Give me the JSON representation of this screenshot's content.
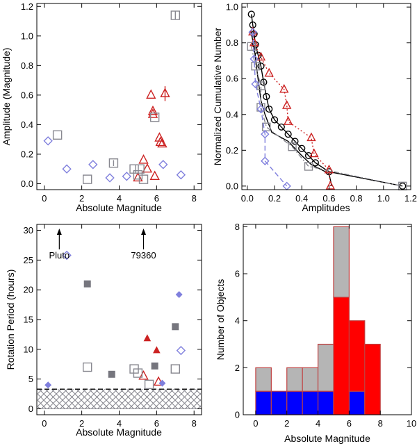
{
  "colors": {
    "red": "#cc2222",
    "gray": "#888890",
    "blue": "#7f7fdd",
    "dark_gray": "#76767e",
    "black": "#000000",
    "hist_gray": "#b5b5b5",
    "hist_red": "#ff0000",
    "hist_blue": "#0000ff",
    "hist_edge": "#c04040",
    "hatch": "#888890"
  },
  "chart_data": [
    {
      "id": "amp_vs_mag",
      "type": "scatter",
      "xlabel": "Absolute Magnitude",
      "ylabel": "Amplitude (Magnitude)",
      "xlim": [
        -0.4,
        8.4
      ],
      "ylim": [
        -0.04,
        1.22
      ],
      "xticks": [
        0,
        2,
        4,
        6,
        8
      ],
      "yticks": [
        0.0,
        0.2,
        0.4,
        0.6,
        0.8,
        1.0,
        1.2
      ],
      "ytick_labels": [
        "0.0",
        "0.2",
        "0.4",
        "0.6",
        "0.8",
        "1.0",
        "1.2"
      ],
      "series": [
        {
          "name": "triangles",
          "marker": "triangle",
          "color_key": "red",
          "x": [
            5.0,
            5.3,
            5.5,
            5.7,
            5.8,
            5.8,
            5.9,
            6.15,
            6.2,
            6.3,
            6.45
          ],
          "y": [
            0.04,
            0.16,
            0.1,
            0.6,
            0.49,
            0.47,
            0.05,
            0.31,
            0.28,
            0.27,
            0.61
          ],
          "err": [
            0,
            0,
            0,
            0,
            0,
            0,
            0,
            0,
            0,
            0,
            0.05
          ]
        },
        {
          "name": "squares",
          "marker": "square",
          "color_key": "gray",
          "x": [
            0.7,
            2.3,
            3.7,
            4.8,
            5.0,
            5.1,
            5.3,
            5.9,
            7.0
          ],
          "y": [
            0.33,
            0.03,
            0.14,
            0.1,
            0.06,
            0.1,
            0.03,
            0.45,
            1.14
          ],
          "err": [
            0,
            0,
            0.02,
            0,
            0,
            0,
            0,
            0,
            0.03
          ]
        },
        {
          "name": "diamonds",
          "marker": "diamond",
          "color_key": "blue",
          "x": [
            0.2,
            1.2,
            2.6,
            3.5,
            4.4,
            6.35,
            7.3
          ],
          "y": [
            0.29,
            0.1,
            0.13,
            0.04,
            0.05,
            0.13,
            0.06
          ],
          "err": [
            0,
            0,
            0,
            0,
            0,
            0,
            0
          ]
        }
      ]
    },
    {
      "id": "cumulative",
      "type": "line",
      "xlabel": "Amplitudes",
      "ylabel": "Normalized Cumulative Number",
      "xlim": [
        -0.04,
        1.2
      ],
      "ylim": [
        -0.02,
        1.02
      ],
      "xticks": [
        0.0,
        0.2,
        0.4,
        0.6,
        0.8,
        1.0,
        1.2
      ],
      "xtick_labels": [
        "0.0",
        "0.2",
        "0.4",
        "0.6",
        "0.8",
        "1.0",
        "1.2"
      ],
      "yticks": [
        0.0,
        0.2,
        0.4,
        0.6,
        0.8,
        1.0
      ],
      "ytick_labels": [
        "0.0",
        "0.2",
        "0.4",
        "0.6",
        "0.8",
        "1.0"
      ],
      "series": [
        {
          "name": "all_circles",
          "marker": "circle",
          "color_key": "black",
          "dash": "solid",
          "x": [
            0.03,
            0.04,
            0.05,
            0.06,
            0.08,
            0.1,
            0.12,
            0.14,
            0.16,
            0.2,
            0.25,
            0.3,
            0.35,
            0.4,
            0.45,
            0.5,
            0.6,
            1.14
          ],
          "y": [
            0.96,
            0.9,
            0.85,
            0.79,
            0.73,
            0.67,
            0.58,
            0.5,
            0.43,
            0.37,
            0.33,
            0.29,
            0.25,
            0.21,
            0.17,
            0.13,
            0.08,
            0.0
          ]
        },
        {
          "name": "black_step",
          "marker": "none",
          "color_key": "black",
          "dash": "solid",
          "x": [
            0.03,
            0.05,
            0.07,
            0.1,
            0.13,
            0.18,
            0.3,
            0.4,
            0.47,
            0.6,
            0.62
          ],
          "y": [
            0.85,
            0.78,
            0.65,
            0.48,
            0.4,
            0.3,
            0.25,
            0.17,
            0.12,
            0.07,
            0.0
          ]
        },
        {
          "name": "red_triangles",
          "marker": "triangle",
          "color_key": "red",
          "dash": "dotted",
          "x": [
            0.04,
            0.05,
            0.1,
            0.16,
            0.27,
            0.29,
            0.3,
            0.47,
            0.49,
            0.6,
            0.61
          ],
          "y": [
            0.86,
            0.8,
            0.72,
            0.63,
            0.54,
            0.45,
            0.36,
            0.27,
            0.18,
            0.09,
            0.0
          ]
        },
        {
          "name": "gray_squares",
          "marker": "square",
          "color_key": "gray",
          "dash": "dashdot",
          "x": [
            0.03,
            0.06,
            0.1,
            0.1,
            0.14,
            0.33,
            0.45,
            1.14
          ],
          "y": [
            0.78,
            0.67,
            0.56,
            0.44,
            0.33,
            0.22,
            0.11,
            0.0
          ]
        },
        {
          "name": "blue_diamonds",
          "marker": "diamond",
          "color_key": "blue",
          "dash": "dashed",
          "x": [
            0.04,
            0.05,
            0.06,
            0.1,
            0.13,
            0.13,
            0.29
          ],
          "y": [
            0.86,
            0.71,
            0.57,
            0.43,
            0.29,
            0.14,
            0.0
          ]
        }
      ]
    },
    {
      "id": "period_vs_mag",
      "type": "scatter",
      "xlabel": "Absolute Magnitude",
      "ylabel": "Rotation Period (hours)",
      "xlim": [
        -0.4,
        8.4
      ],
      "ylim": [
        -1.0,
        31.0
      ],
      "xticks": [
        0,
        2,
        4,
        6,
        8
      ],
      "yticks": [
        0,
        5,
        10,
        15,
        20,
        25,
        30
      ],
      "hatch_region": {
        "y_min": 0,
        "y_max": 3.3
      },
      "annotations": [
        {
          "text": "Pluto",
          "x": 0.8,
          "y_arrow_tip": 30.3,
          "y_arrow_base": 26.8,
          "y_text": 25.3
        },
        {
          "text": "79360",
          "x": 5.3,
          "y_arrow_tip": 30.3,
          "y_arrow_base": 26.8,
          "y_text": 25.3
        }
      ],
      "series": [
        {
          "name": "open_triangles",
          "marker": "triangle",
          "filled": false,
          "color_key": "red",
          "x": [
            5.3,
            6.1
          ],
          "y": [
            5.5,
            4.5
          ]
        },
        {
          "name": "filled_triangles",
          "marker": "triangle",
          "filled": true,
          "color_key": "red",
          "x": [
            5.5,
            6.0
          ],
          "y": [
            11.8,
            9.8
          ]
        },
        {
          "name": "open_squares",
          "marker": "square",
          "filled": false,
          "color_key": "gray",
          "x": [
            2.3,
            4.8,
            5.0,
            5.6,
            7.0
          ],
          "y": [
            7.0,
            6.7,
            6.0,
            4.1,
            6.7
          ]
        },
        {
          "name": "filled_squares",
          "marker": "square",
          "filled": true,
          "color_key": "dark_gray",
          "x": [
            2.3,
            3.6,
            5.9,
            7.0
          ],
          "y": [
            21.0,
            5.8,
            7.2,
            13.8
          ]
        },
        {
          "name": "open_diamonds",
          "marker": "diamond",
          "filled": false,
          "color_key": "blue",
          "x": [
            1.2,
            7.3
          ],
          "y": [
            25.8,
            9.8
          ]
        },
        {
          "name": "filled_diamonds",
          "marker": "diamond",
          "filled": true,
          "color_key": "blue",
          "x": [
            0.2,
            6.3,
            7.2
          ],
          "y": [
            4.0,
            4.3,
            19.2
          ]
        }
      ]
    },
    {
      "id": "histogram",
      "type": "bar",
      "stacked": true,
      "xlabel": "Absolute Magnitude",
      "ylabel": "Number of Objects",
      "xlim": [
        -0.8,
        10.0
      ],
      "ylim": [
        0,
        8.1
      ],
      "xticks": [
        0,
        2,
        4,
        6,
        8,
        10
      ],
      "yticks": [
        0,
        2,
        4,
        6,
        8
      ],
      "bin_edges": [
        0,
        1,
        2,
        3,
        4,
        5,
        6,
        7,
        8,
        9,
        10
      ],
      "series": [
        {
          "name": "blue",
          "color_key": "hist_blue",
          "values": [
            1,
            1,
            1,
            1,
            1,
            0,
            1,
            0,
            0,
            0
          ]
        },
        {
          "name": "red",
          "color_key": "hist_red",
          "values": [
            0,
            0,
            0,
            0,
            0,
            5,
            3,
            3,
            0,
            0
          ]
        },
        {
          "name": "gray",
          "color_key": "hist_gray",
          "values": [
            1,
            0,
            1,
            1,
            2,
            3,
            0,
            0,
            0,
            0
          ]
        }
      ]
    }
  ]
}
